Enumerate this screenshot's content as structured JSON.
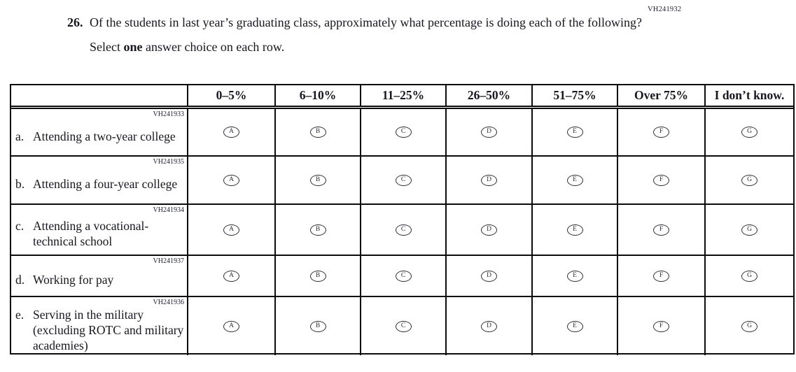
{
  "page": {
    "top_right_code": "VH241932"
  },
  "question": {
    "number": "26.",
    "text": "Of the students in last year’s graduating class, approximately what percentage is doing each of the following?",
    "instruction_prefix": "Select ",
    "instruction_bold": "one",
    "instruction_suffix": " answer choice on each row."
  },
  "table": {
    "column_headers": [
      "0–5%",
      "6–10%",
      "11–25%",
      "26–50%",
      "51–75%",
      "Over 75%",
      "I don’t know."
    ],
    "option_letters": [
      "A",
      "B",
      "C",
      "D",
      "E",
      "F",
      "G"
    ],
    "rows": [
      {
        "code": "VH241933",
        "prefix": "a.",
        "text": "Attending a two-year college"
      },
      {
        "code": "VH241935",
        "prefix": "b.",
        "text": "Attending a four-year college"
      },
      {
        "code": "VH241934",
        "prefix": "c.",
        "text": "Attending a vocational-technical school"
      },
      {
        "code": "VH241937",
        "prefix": "d.",
        "text": "Working for pay"
      },
      {
        "code": "VH241936",
        "prefix": "e.",
        "text": "Serving in the military (excluding ROTC and military academies)"
      }
    ]
  }
}
